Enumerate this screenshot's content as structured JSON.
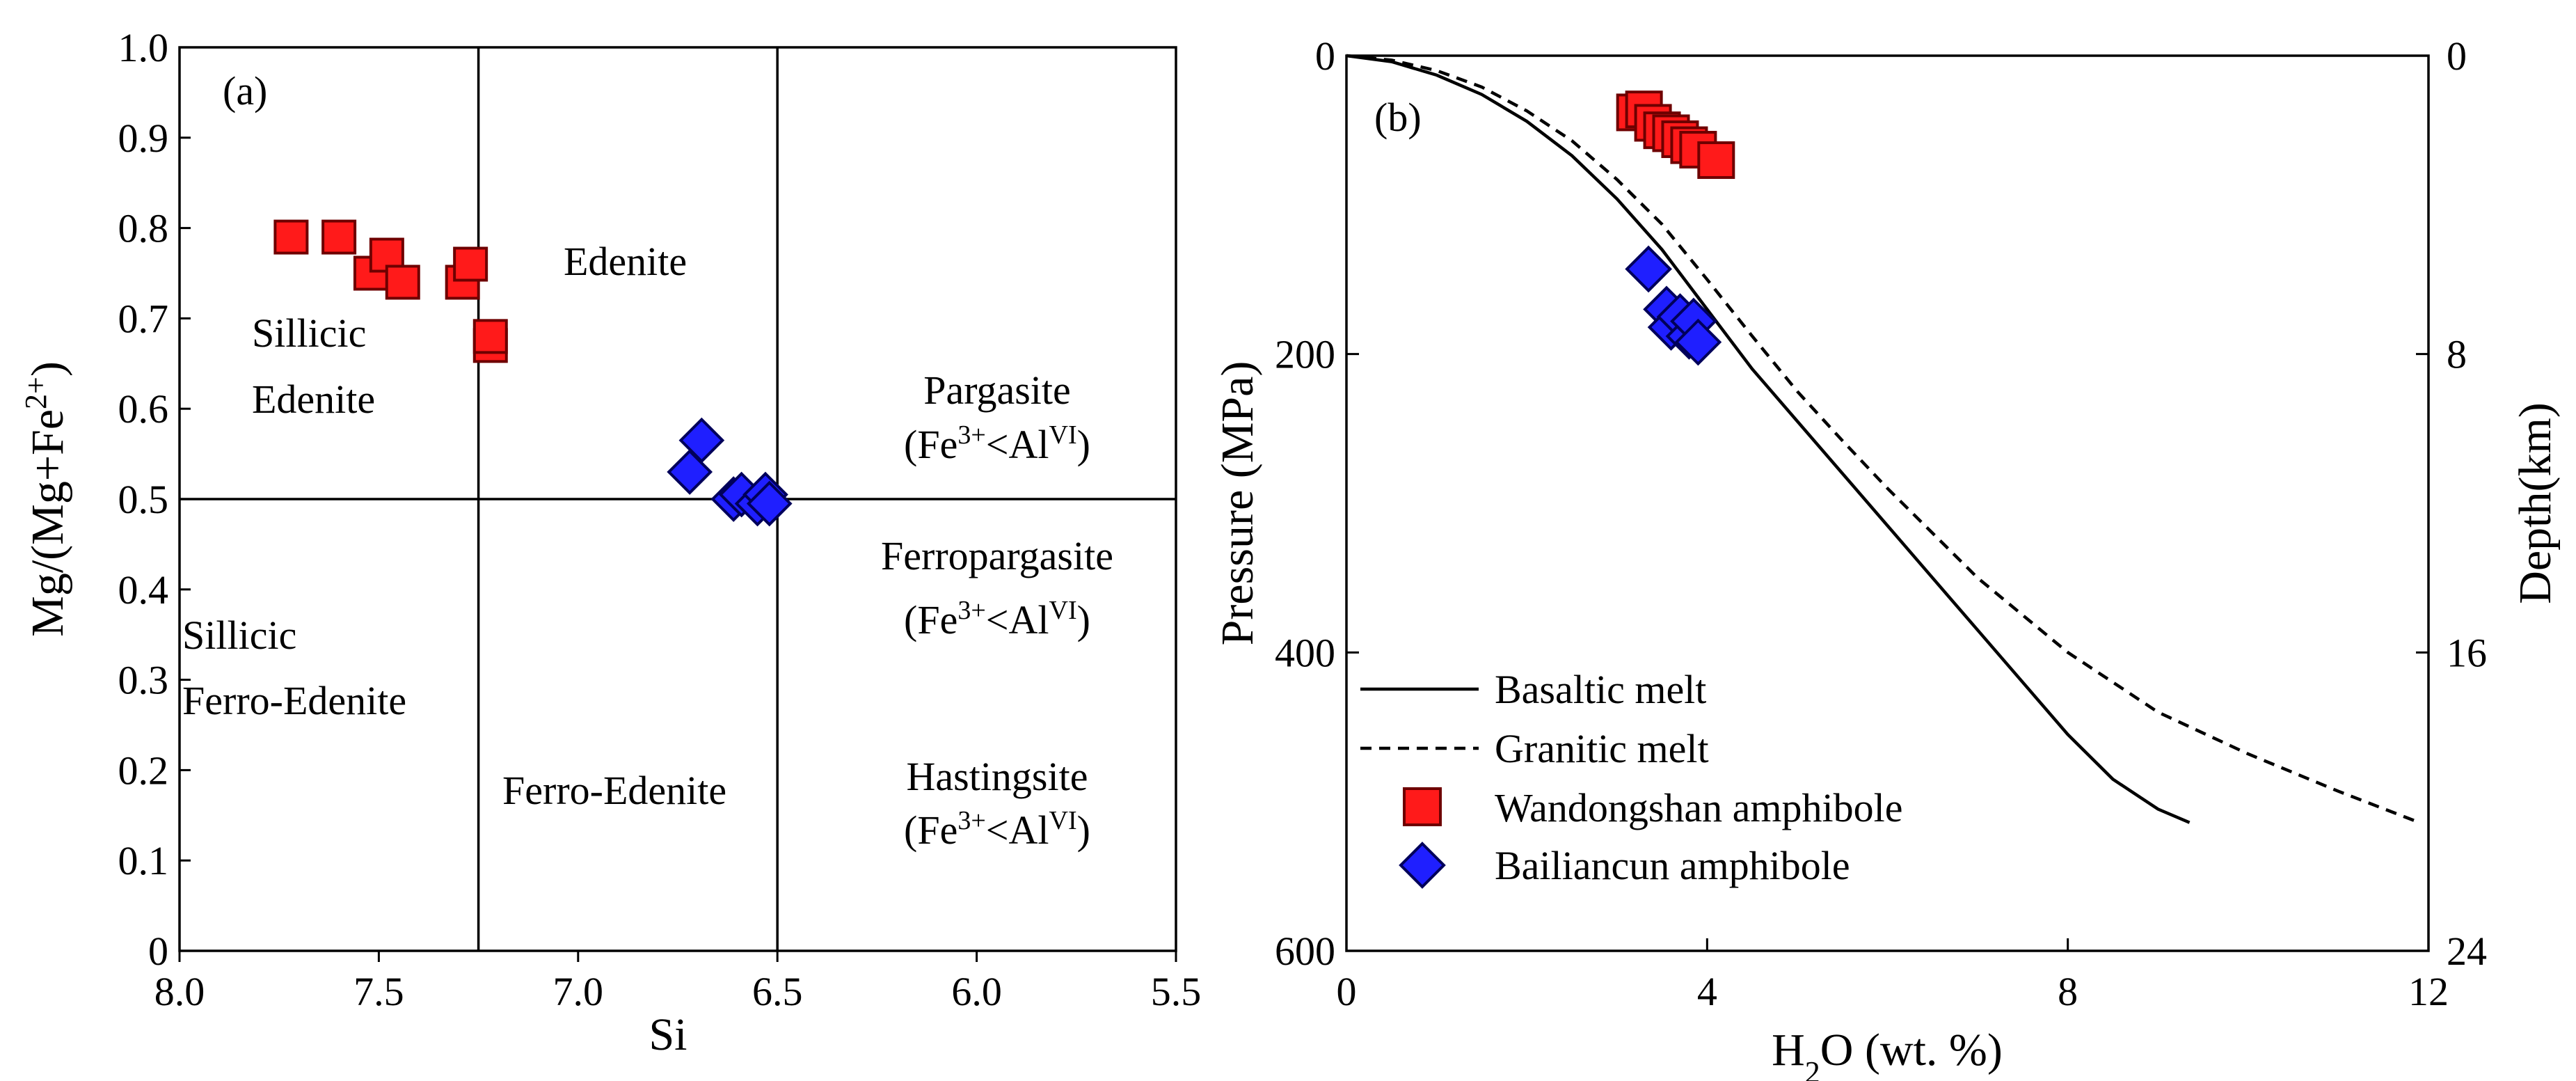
{
  "chart_data": [
    {
      "type": "scatter",
      "panel_label": "(a)",
      "xlabel": "Si",
      "ylabel": "Mg/(Mg+Fe",
      "ylabel_sup": "2+",
      "ylabel_close": ")",
      "xlim": [
        8.0,
        5.5
      ],
      "ylim": [
        0,
        1.0
      ],
      "x_ticks": [
        "8.0",
        "7.5",
        "7.0",
        "6.5",
        "6.0",
        "5.5"
      ],
      "y_ticks": [
        "0",
        "0.1",
        "0.2",
        "0.3",
        "0.4",
        "0.5",
        "0.6",
        "0.7",
        "0.8",
        "0.9",
        "1.0"
      ],
      "boundaries": {
        "si_1": 7.25,
        "si_2": 6.5,
        "mg_number": 0.5
      },
      "fields": {
        "edenite": "Edenite",
        "sillicic_edenite_1": "Sillicic",
        "sillicic_edenite_2": "Edenite",
        "pargasite": "Pargasite",
        "sillicic_ferro_edenite_1": "Sillicic",
        "sillicic_ferro_edenite_2": "Ferro-Edenite",
        "ferro_edenite": "Ferro-Edenite",
        "ferropargasite": "Ferropargasite",
        "hastingsite": "Hastingsite",
        "condition_prefix": "(Fe",
        "condition_sup1": "3+",
        "condition_mid": "<Al",
        "condition_sup2": "VI",
        "condition_suffix": ")"
      },
      "series": [
        {
          "name": "Wandongshan amphibole",
          "marker": "square",
          "color": "#ff1a1a",
          "x": [
            7.72,
            7.6,
            7.52,
            7.48,
            7.44,
            7.29,
            7.27,
            7.22,
            7.22
          ],
          "y": [
            0.79,
            0.79,
            0.75,
            0.77,
            0.74,
            0.74,
            0.76,
            0.67,
            0.68
          ]
        },
        {
          "name": "Bailiancun amphibole",
          "marker": "diamond",
          "color": "#1f1fff",
          "x": [
            6.72,
            6.69,
            6.61,
            6.59,
            6.55,
            6.53,
            6.52
          ],
          "y": [
            0.53,
            0.565,
            0.5,
            0.505,
            0.495,
            0.505,
            0.495
          ]
        }
      ]
    },
    {
      "type": "line",
      "panel_label": "(b)",
      "xlabel_prefix": "H",
      "xlabel_sub": "2",
      "xlabel_suffix": "O (wt. %)",
      "ylabel": "Pressure (MPa)",
      "y2label": "Depth(km)",
      "xlim": [
        0,
        12
      ],
      "ylim": [
        600,
        0
      ],
      "y2lim": [
        24,
        0
      ],
      "x_ticks": [
        "0",
        "4",
        "8",
        "12"
      ],
      "y_ticks": [
        "0",
        "200",
        "400",
        "600"
      ],
      "y2_ticks": [
        "0",
        "8",
        "16",
        "24"
      ],
      "lines": [
        {
          "name": "Basaltic melt",
          "style": "solid",
          "x": [
            0,
            0.5,
            1.0,
            1.5,
            2.0,
            2.5,
            3.0,
            3.5,
            4.0,
            4.5,
            5.0,
            5.5,
            6.0,
            6.5,
            7.0,
            7.5,
            8.0,
            8.5,
            9.0,
            9.35
          ],
          "y": [
            0,
            4,
            13,
            26,
            44,
            67,
            96,
            130,
            170,
            210,
            245,
            280,
            315,
            350,
            385,
            420,
            455,
            485,
            505,
            514
          ]
        },
        {
          "name": "Granitic melt",
          "style": "dashed",
          "x": [
            0,
            0.5,
            1.0,
            1.5,
            2.0,
            2.5,
            3.0,
            3.5,
            4.0,
            4.5,
            5.0,
            5.5,
            6.0,
            7.0,
            8.0,
            9.0,
            10.0,
            11.0,
            11.9
          ],
          "y": [
            0,
            3,
            10,
            21,
            37,
            57,
            83,
            113,
            150,
            188,
            225,
            258,
            290,
            350,
            400,
            440,
            468,
            493,
            514
          ]
        }
      ],
      "series": [
        {
          "name": "Wandongshan amphibole",
          "marker": "square",
          "color": "#ff1a1a",
          "x": [
            3.2,
            3.3,
            3.4,
            3.5,
            3.6,
            3.7,
            3.8,
            3.9,
            4.1
          ],
          "y": [
            38,
            36,
            45,
            50,
            52,
            56,
            60,
            63,
            70
          ]
        },
        {
          "name": "Bailiancun amphibole",
          "marker": "diamond",
          "color": "#1f1fff",
          "x": [
            3.35,
            3.55,
            3.6,
            3.7,
            3.8,
            3.85,
            3.9
          ],
          "y": [
            143,
            170,
            182,
            175,
            188,
            178,
            192
          ]
        }
      ],
      "legend": [
        "Basaltic melt",
        "Granitic melt",
        "Wandongshan amphibole",
        "Bailiancun amphibole"
      ]
    }
  ]
}
